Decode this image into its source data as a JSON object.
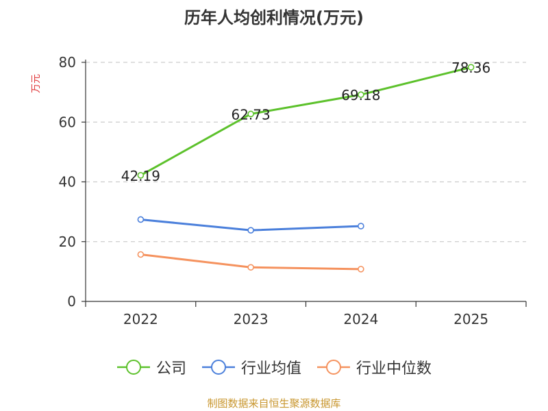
{
  "chart_data": {
    "type": "line",
    "title": "历年人均创利情况(万元)",
    "ylabel": "万元",
    "xlabel": "",
    "categories": [
      "2022",
      "2023",
      "2024",
      "2025"
    ],
    "ylim": [
      0,
      80
    ],
    "yticks": [
      0,
      20,
      40,
      60,
      80
    ],
    "grid": true,
    "legend_position": "bottom",
    "series": [
      {
        "name": "公司",
        "color": "#5cc12b",
        "values": [
          42.19,
          62.73,
          69.18,
          78.36
        ],
        "labels": [
          "42.19",
          "62.73",
          "69.18",
          "78.36"
        ]
      },
      {
        "name": "行业均值",
        "color": "#4a7fdb",
        "values": [
          27.4,
          23.8,
          25.2,
          null
        ],
        "labels": []
      },
      {
        "name": "行业中位数",
        "color": "#f5925e",
        "values": [
          15.7,
          11.4,
          10.8,
          null
        ],
        "labels": []
      }
    ]
  },
  "footer": {
    "source": "制图数据来自恒生聚源数据库"
  }
}
